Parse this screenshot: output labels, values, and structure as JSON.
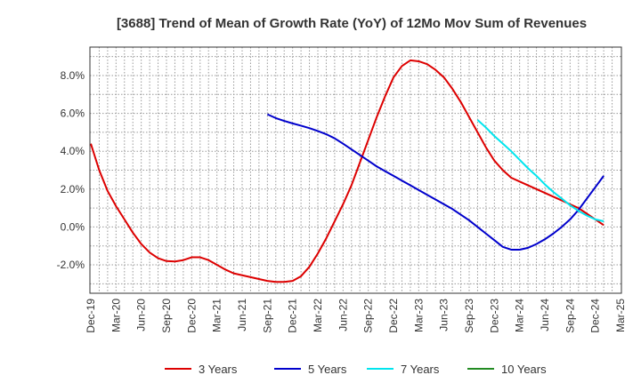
{
  "chart_data": {
    "type": "line",
    "title": "[3688]  Trend of Mean of Growth Rate (YoY) of 12Mo Mov Sum of Revenues",
    "xlabel": "",
    "ylabel": "",
    "ylim": [
      -3.5,
      9.5
    ],
    "yticks": [
      -2.0,
      0.0,
      2.0,
      4.0,
      6.0,
      8.0
    ],
    "ytick_labels": [
      "-2.0%",
      "0.0%",
      "2.0%",
      "4.0%",
      "6.0%",
      "8.0%"
    ],
    "xtick_labels": [
      "Dec-19",
      "Mar-20",
      "Jun-20",
      "Sep-20",
      "Dec-20",
      "Mar-21",
      "Jun-21",
      "Sep-21",
      "Dec-21",
      "Mar-22",
      "Jun-22",
      "Sep-22",
      "Dec-22",
      "Mar-23",
      "Jun-23",
      "Sep-23",
      "Dec-23",
      "Mar-24",
      "Jun-24",
      "Sep-24",
      "Dec-24",
      "Mar-25"
    ],
    "x_unit": "months since Dec-19",
    "grid": true,
    "legend_position": "bottom",
    "series": [
      {
        "name": "3 Years",
        "color": "#dd0000",
        "points": [
          [
            0,
            4.4
          ],
          [
            1,
            3.0
          ],
          [
            2,
            1.9
          ],
          [
            3,
            1.1
          ],
          [
            4,
            0.4
          ],
          [
            5,
            -0.3
          ],
          [
            6,
            -0.9
          ],
          [
            7,
            -1.35
          ],
          [
            8,
            -1.65
          ],
          [
            9,
            -1.8
          ],
          [
            10,
            -1.82
          ],
          [
            11,
            -1.75
          ],
          [
            12,
            -1.6
          ],
          [
            13,
            -1.6
          ],
          [
            14,
            -1.75
          ],
          [
            15,
            -2.0
          ],
          [
            16,
            -2.25
          ],
          [
            17,
            -2.45
          ],
          [
            18,
            -2.55
          ],
          [
            19,
            -2.65
          ],
          [
            20,
            -2.75
          ],
          [
            21,
            -2.85
          ],
          [
            22,
            -2.9
          ],
          [
            23,
            -2.9
          ],
          [
            24,
            -2.85
          ],
          [
            25,
            -2.6
          ],
          [
            26,
            -2.1
          ],
          [
            27,
            -1.4
          ],
          [
            28,
            -0.6
          ],
          [
            29,
            0.3
          ],
          [
            30,
            1.2
          ],
          [
            31,
            2.2
          ],
          [
            32,
            3.4
          ],
          [
            33,
            4.6
          ],
          [
            34,
            5.8
          ],
          [
            35,
            6.9
          ],
          [
            36,
            7.9
          ],
          [
            37,
            8.5
          ],
          [
            38,
            8.8
          ],
          [
            39,
            8.75
          ],
          [
            40,
            8.6
          ],
          [
            41,
            8.3
          ],
          [
            42,
            7.9
          ],
          [
            43,
            7.3
          ],
          [
            44,
            6.6
          ],
          [
            45,
            5.8
          ],
          [
            46,
            5.0
          ],
          [
            47,
            4.2
          ],
          [
            48,
            3.5
          ],
          [
            49,
            3.0
          ],
          [
            50,
            2.6
          ],
          [
            51,
            2.4
          ],
          [
            52,
            2.2
          ],
          [
            53,
            2.0
          ],
          [
            54,
            1.8
          ],
          [
            55,
            1.6
          ],
          [
            56,
            1.4
          ],
          [
            57,
            1.2
          ],
          [
            58,
            1.0
          ],
          [
            59,
            0.7
          ],
          [
            60,
            0.4
          ],
          [
            61,
            0.1
          ]
        ]
      },
      {
        "name": "5 Years",
        "color": "#0000cc",
        "points": [
          [
            21,
            5.95
          ],
          [
            22,
            5.75
          ],
          [
            23,
            5.6
          ],
          [
            24,
            5.47
          ],
          [
            25,
            5.35
          ],
          [
            26,
            5.22
          ],
          [
            27,
            5.07
          ],
          [
            28,
            4.9
          ],
          [
            29,
            4.68
          ],
          [
            30,
            4.4
          ],
          [
            31,
            4.1
          ],
          [
            32,
            3.8
          ],
          [
            33,
            3.5
          ],
          [
            34,
            3.2
          ],
          [
            35,
            2.95
          ],
          [
            36,
            2.7
          ],
          [
            37,
            2.45
          ],
          [
            38,
            2.2
          ],
          [
            39,
            1.95
          ],
          [
            40,
            1.7
          ],
          [
            41,
            1.45
          ],
          [
            42,
            1.2
          ],
          [
            43,
            0.95
          ],
          [
            44,
            0.65
          ],
          [
            45,
            0.35
          ],
          [
            46,
            0.0
          ],
          [
            47,
            -0.35
          ],
          [
            48,
            -0.7
          ],
          [
            49,
            -1.05
          ],
          [
            50,
            -1.2
          ],
          [
            51,
            -1.2
          ],
          [
            52,
            -1.1
          ],
          [
            53,
            -0.9
          ],
          [
            54,
            -0.65
          ],
          [
            55,
            -0.35
          ],
          [
            56,
            0.0
          ],
          [
            57,
            0.4
          ],
          [
            58,
            0.9
          ],
          [
            59,
            1.5
          ],
          [
            60,
            2.1
          ],
          [
            61,
            2.7
          ]
        ]
      },
      {
        "name": "7 Years",
        "color": "#00e5ee",
        "points": [
          [
            46,
            5.65
          ],
          [
            47,
            5.25
          ],
          [
            48,
            4.8
          ],
          [
            49,
            4.4
          ],
          [
            50,
            4.0
          ],
          [
            51,
            3.55
          ],
          [
            52,
            3.1
          ],
          [
            53,
            2.7
          ],
          [
            54,
            2.25
          ],
          [
            55,
            1.85
          ],
          [
            56,
            1.5
          ],
          [
            57,
            1.15
          ],
          [
            58,
            0.85
          ],
          [
            59,
            0.6
          ],
          [
            60,
            0.4
          ],
          [
            61,
            0.3
          ]
        ]
      },
      {
        "name": "10 Years",
        "color": "#228b22",
        "points": []
      }
    ]
  }
}
